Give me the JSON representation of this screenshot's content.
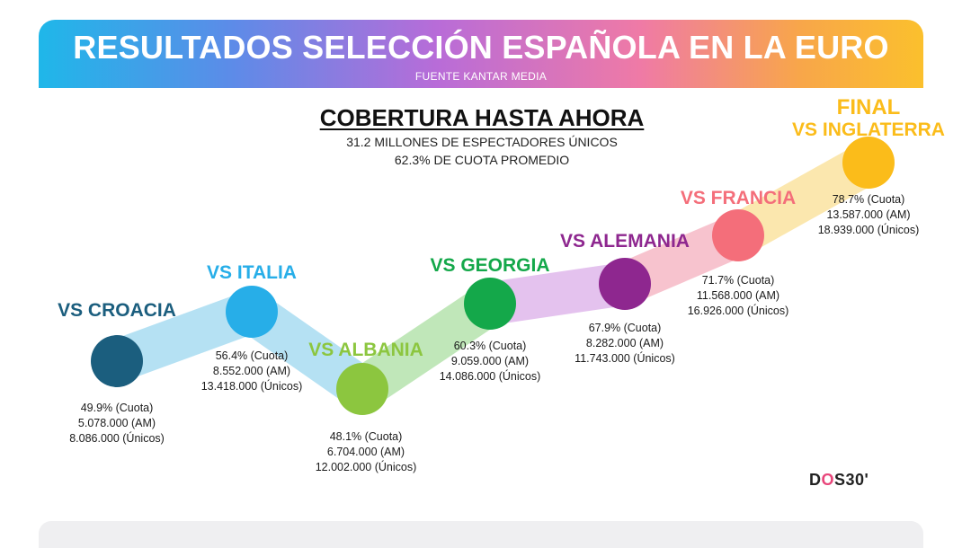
{
  "header": {
    "title": "RESULTADOS SELECCIÓN ESPAÑOLA EN LA EURO",
    "source": "FUENTE KANTAR MEDIA"
  },
  "coverage": {
    "title": "COBERTURA HASTA AHORA",
    "line1": "31.2 MILLONES DE ESPECTADORES ÚNICOS",
    "line2": "62.3% DE CUOTA PROMEDIO"
  },
  "logo": {
    "text_a": "D",
    "text_o": "O",
    "text_b": "S30'"
  },
  "chart_data": {
    "type": "line",
    "categories": [
      "VS CROACIA",
      "VS ITALIA",
      "VS ALBANIA",
      "VS GEORGIA",
      "VS ALEMANIA",
      "VS FRANCIA",
      "VS INGLATERRA"
    ],
    "stage_labels": [
      "",
      "",
      "",
      "",
      "",
      "",
      "FINAL"
    ],
    "x_axis_visible": false,
    "y_axis_visible": false,
    "y_series": "Cuota (%)",
    "series": [
      {
        "name": "Cuota",
        "values": [
          49.9,
          56.4,
          48.1,
          60.3,
          67.9,
          71.7,
          78.7
        ]
      }
    ],
    "colors": [
      "#1b5e7e",
      "#27aee8",
      "#8cc63f",
      "#14a84a",
      "#8e278f",
      "#f46e7a",
      "#fbbc1a"
    ],
    "ribbon_colors": [
      "#a9dcf2",
      "#a9dcf2",
      "#b6e3ad",
      "#e0b8ec",
      "#f6b9c6",
      "#fbe3a0"
    ],
    "data_labels": [
      [
        "49.9% (Cuota)",
        "5.078.000 (AM)",
        "8.086.000 (Únicos)"
      ],
      [
        "56.4% (Cuota)",
        "8.552.000 (AM)",
        "13.418.000 (Únicos)"
      ],
      [
        "48.1% (Cuota)",
        "6.704.000 (AM)",
        "12.002.000 (Únicos)"
      ],
      [
        "60.3% (Cuota)",
        "9.059.000 (AM)",
        "14.086.000 (Únicos)"
      ],
      [
        "67.9% (Cuota)",
        "8.282.000 (AM)",
        "11.743.000 (Únicos)"
      ],
      [
        "71.7% (Cuota)",
        "11.568.000 (AM)",
        "16.926.000 (Únicos)"
      ],
      [
        "78.7% (Cuota)",
        "13.587.000 (AM)",
        "18.939.000 (Únicos)"
      ]
    ]
  }
}
